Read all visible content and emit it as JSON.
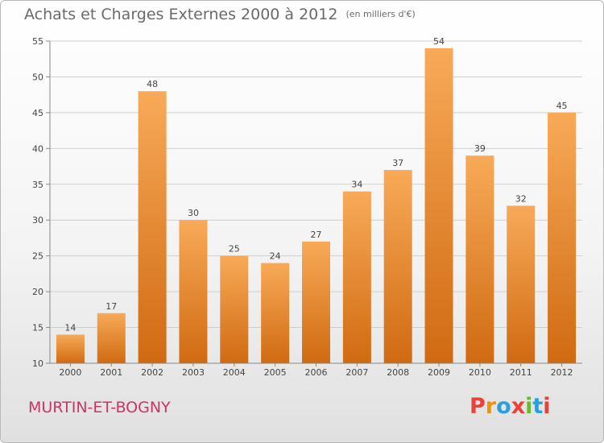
{
  "header": {
    "title": "Achats et Charges Externes 2000 à 2012",
    "subtitle": "(en milliers d'€)"
  },
  "footer": {
    "commune": "MURTIN-ET-BOGNY",
    "logo_text": "Proxiti",
    "logo_colors": [
      "#e8423a",
      "#f29400",
      "#2a9fd8",
      "#e8423a",
      "#6bb82e",
      "#2a9fd8",
      "#e8423a"
    ]
  },
  "colors": {
    "bar_light": "#f8aa58",
    "bar_dark": "#d06a12",
    "grid": "#cfcfcf",
    "axis_text": "#444444",
    "commune": "#cc3367"
  },
  "chart_data": {
    "type": "bar",
    "title": "Achats et Charges Externes 2000 à 2012",
    "subtitle": "(en milliers d'€)",
    "xlabel": "",
    "ylabel": "",
    "categories": [
      "2000",
      "2001",
      "2002",
      "2003",
      "2004",
      "2005",
      "2006",
      "2007",
      "2008",
      "2009",
      "2010",
      "2011",
      "2012"
    ],
    "values": [
      14,
      17,
      48,
      30,
      25,
      24,
      27,
      34,
      37,
      54,
      39,
      32,
      45
    ],
    "ylim": [
      10,
      55
    ],
    "yticks": [
      10,
      15,
      20,
      25,
      30,
      35,
      40,
      45,
      50,
      55
    ],
    "grid": true,
    "data_labels": true
  }
}
